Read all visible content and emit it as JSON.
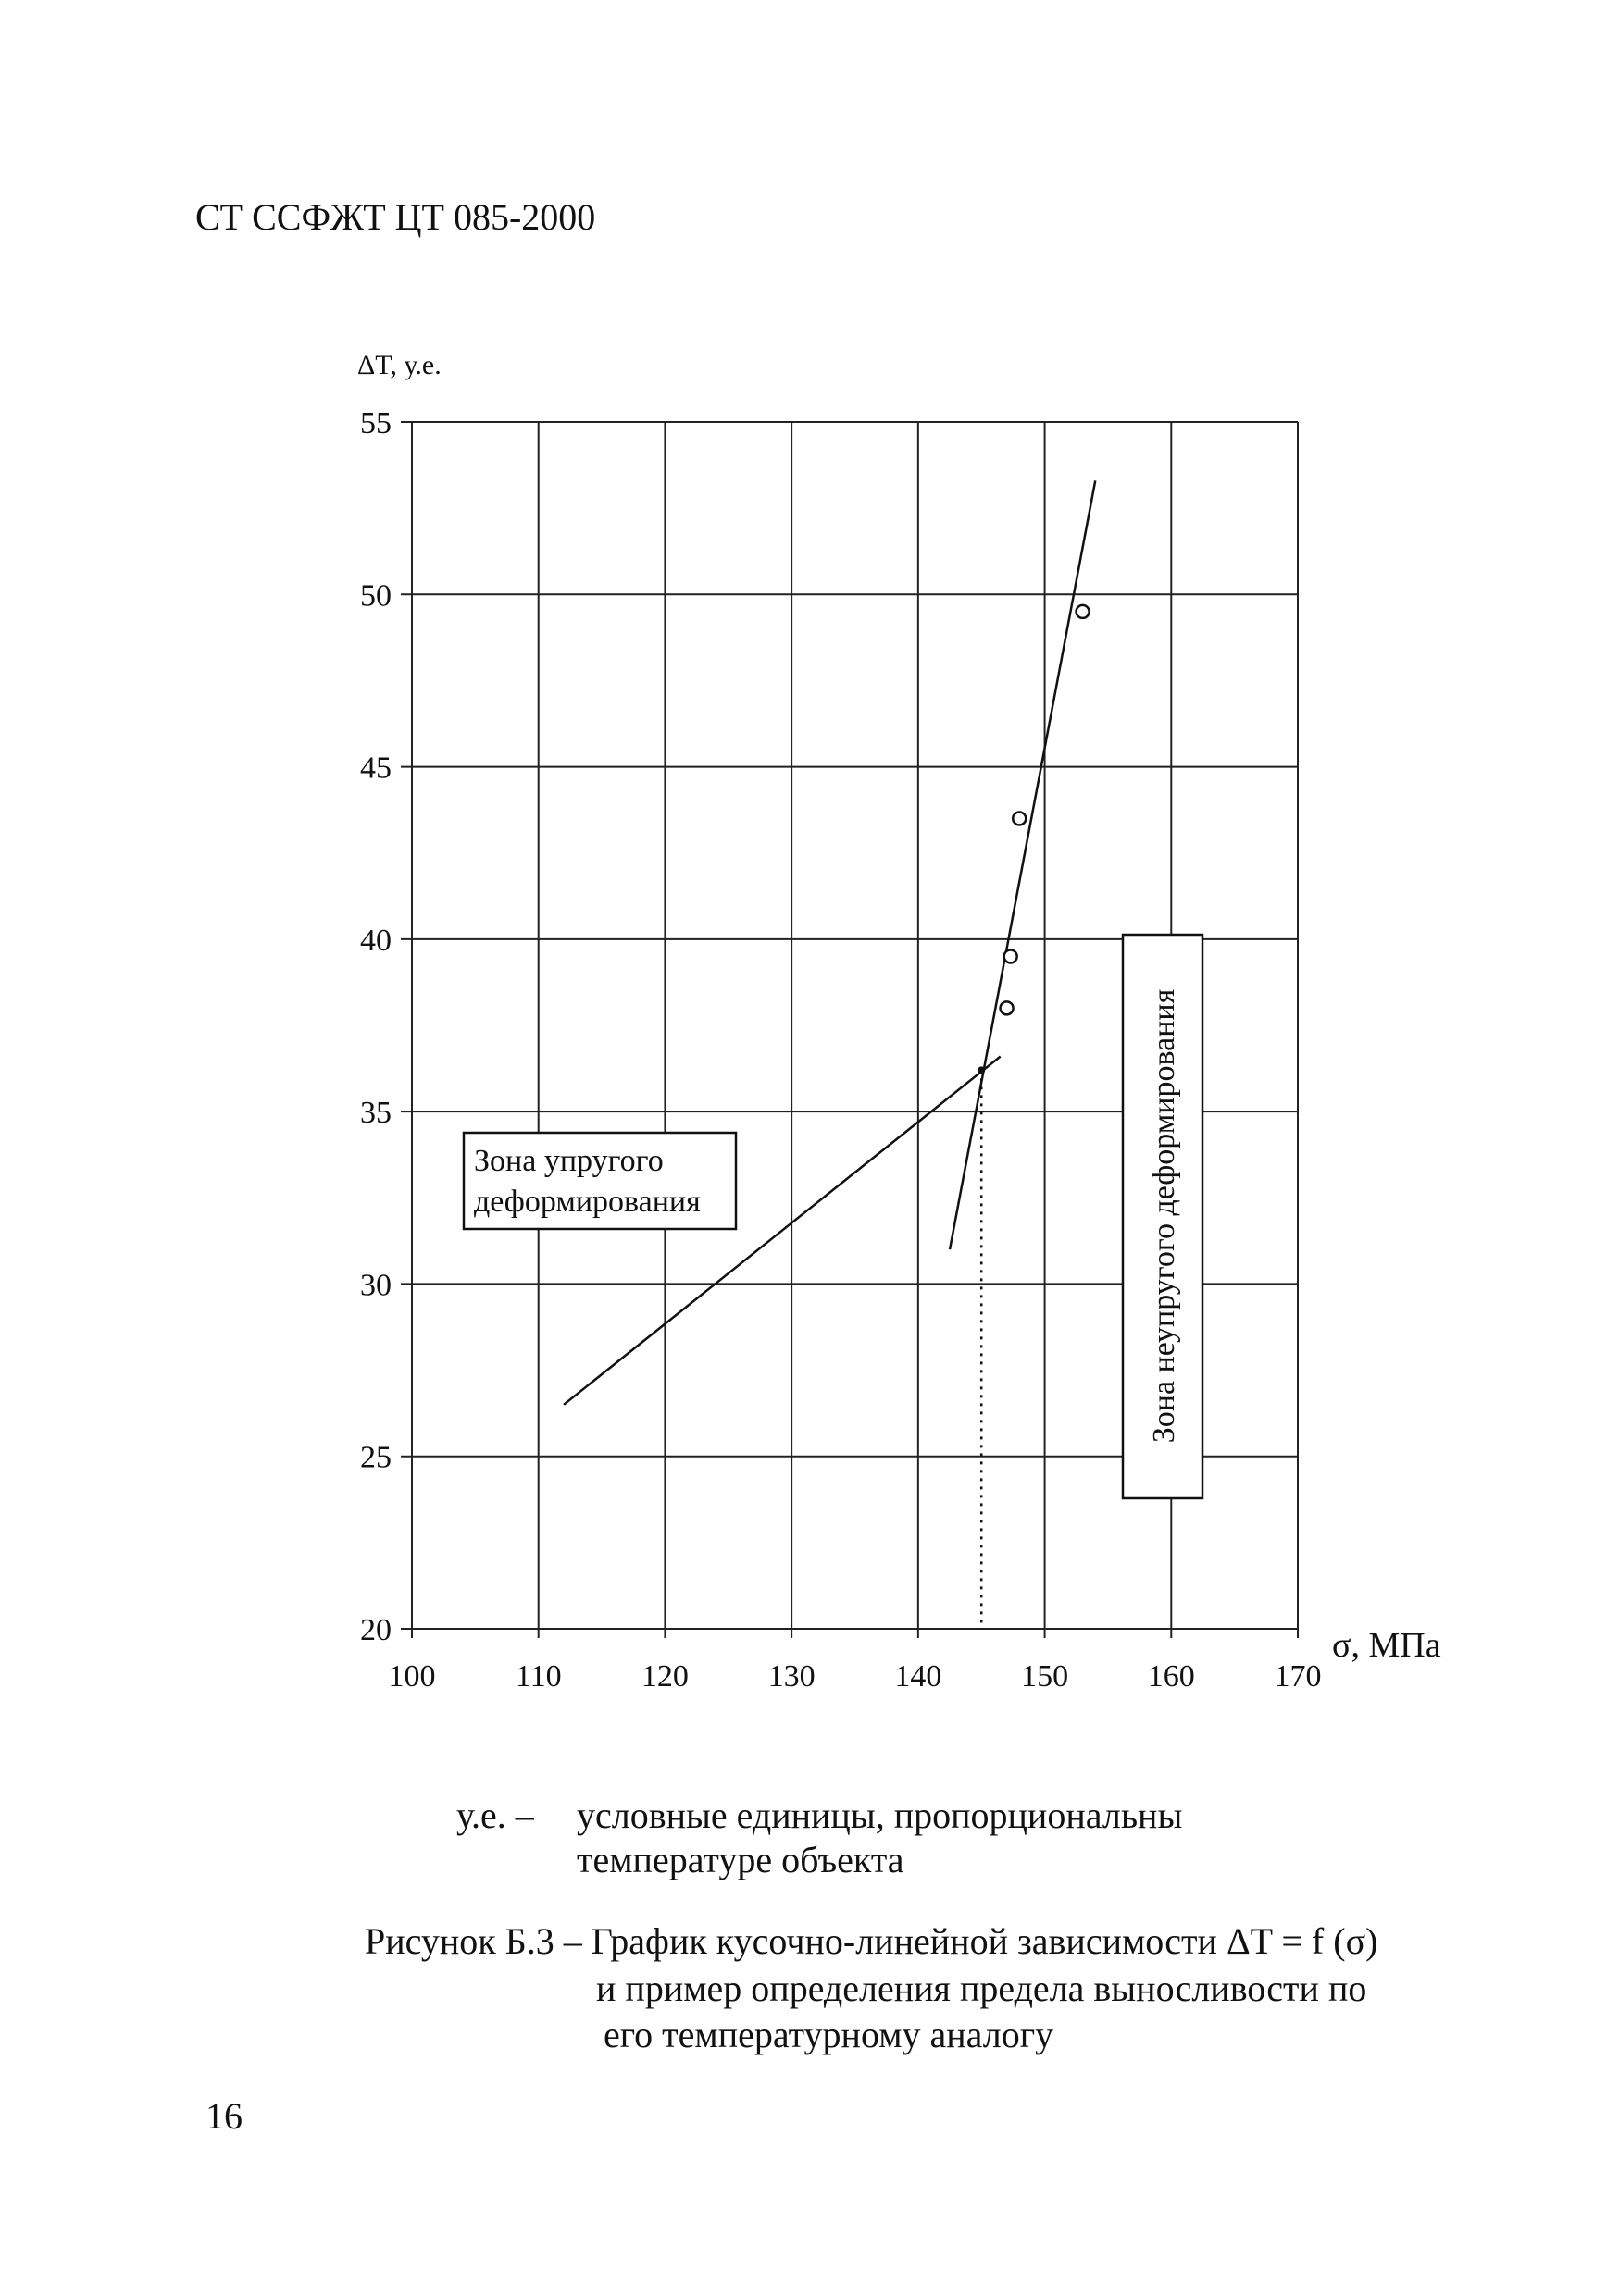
{
  "header": "СТ ССФЖТ ЦТ 085-2000",
  "chart_data": {
    "type": "scatter",
    "y_label": "ΔT, у.е.",
    "x_label": "σ, МПа",
    "xlim": [
      100,
      170
    ],
    "xticks": [
      100,
      110,
      120,
      130,
      140,
      150,
      160,
      170
    ],
    "ylim": [
      20,
      55
    ],
    "yticks": [
      20,
      25,
      30,
      35,
      40,
      45,
      50,
      55
    ],
    "grid": true,
    "x": [
      147,
      147.3,
      148,
      153
    ],
    "values": [
      38,
      39.5,
      43.5,
      49.5
    ],
    "lines": [
      {
        "x": [
          112,
          146.5
        ],
        "values": [
          26.5,
          36.6
        ]
      },
      {
        "x": [
          142.5,
          154
        ],
        "values": [
          31,
          53.3
        ]
      }
    ],
    "intersection": {
      "x": 145,
      "value": 36.2
    },
    "annotations": [
      {
        "lines": [
          "Зона упругого",
          "деформирования"
        ]
      },
      {
        "lines": [
          "Зона неупругого деформирования"
        ]
      }
    ]
  },
  "footnote": {
    "term": "у.е. –",
    "lines": [
      "условные единицы, пропорциональны",
      "температуре объекта"
    ]
  },
  "caption": [
    "Рисунок Б.3 – График кусочно-линейной зависимости ΔT = f (σ)",
    "и   пример определения предела выносливости по",
    "его температурному аналогу"
  ],
  "page_number": "16"
}
